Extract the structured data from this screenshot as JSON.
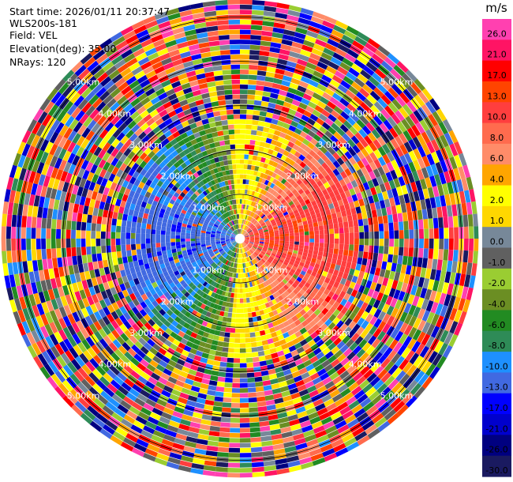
{
  "header": {
    "start_time": "Start time: 2026/01/11 20:37:47",
    "instrument": "WLS200s-181",
    "field": "Field: VEL",
    "elevation": "Elevation(deg): 35.00",
    "nrays": "NRays: 120"
  },
  "chart_data": {
    "type": "heatmap",
    "projection": "polar-ppi",
    "field": "VEL",
    "units": "m/s",
    "nrays": 120,
    "elevation_deg": 35.0,
    "range_rings_km": [
      1.0,
      2.0,
      3.0,
      4.0,
      5.0
    ],
    "range_ring_labels": [
      "1.00km",
      "2.00km",
      "3.00km",
      "4.00km",
      "5.00km"
    ],
    "max_range_km": 5.4,
    "pattern": "Coherent near field (< ~2.5 km): positive (red/orange) velocities toward the east, negative (blue) toward the west, near zero (yellow) along north-south; noisy random velocities beyond ~2.5 km.",
    "colorbar": {
      "title": "m/s",
      "tick_labels": [
        "26.0",
        "21.0",
        "17.0",
        "13.0",
        "10.0",
        "8.0",
        "6.0",
        "4.0",
        "2.0",
        "1.0",
        "0.0",
        "-1.0",
        "-2.0",
        "-4.0",
        "-6.0",
        "-8.0",
        "-10.0",
        "-13.0",
        "-17.0",
        "-21.0",
        "-26.0",
        "-30.0"
      ],
      "colors": [
        "#ff40b0",
        "#ff1464",
        "#ff0000",
        "#ff4400",
        "#ff3e3e",
        "#ff6b4e",
        "#ff8c69",
        "#ffa500",
        "#ffff00",
        "#ffd700",
        "#778899",
        "#606060",
        "#9acd32",
        "#6b8e23",
        "#228b22",
        "#2e8b57",
        "#1e90ff",
        "#4169e1",
        "#0000ff",
        "#0000cd",
        "#000080",
        "#1a1a60"
      ]
    }
  }
}
